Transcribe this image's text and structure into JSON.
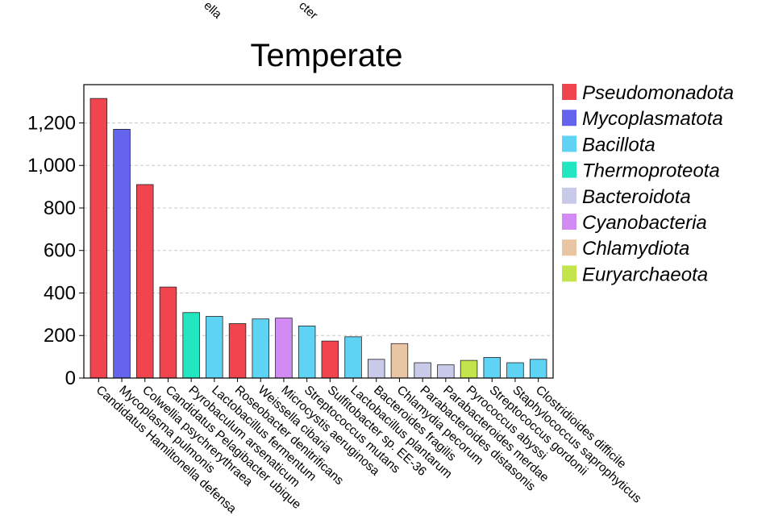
{
  "top_fragments": [
    "ella",
    "cter"
  ],
  "chart_data": {
    "type": "bar",
    "title": "Temperate",
    "xlabel": "",
    "ylabel": "",
    "ylim": [
      0,
      1380
    ],
    "yticks": [
      0,
      200,
      400,
      600,
      800,
      1000,
      1200
    ],
    "ytick_labels": [
      "0",
      "200",
      "400",
      "600",
      "800",
      "1,000",
      "1,200"
    ],
    "grid": true,
    "legend_position": "right",
    "legend": [
      {
        "name": "Pseudomonadota",
        "color": "#f0444f"
      },
      {
        "name": "Mycoplasmatota",
        "color": "#6464ee"
      },
      {
        "name": "Bacillota",
        "color": "#5fd3f4"
      },
      {
        "name": "Thermoproteota",
        "color": "#22e6c0"
      },
      {
        "name": "Bacteroidota",
        "color": "#c9c9ea"
      },
      {
        "name": "Cyanobacteria",
        "color": "#d28bf4"
      },
      {
        "name": "Chlamydiota",
        "color": "#e8c6a4"
      },
      {
        "name": "Euryarchaeota",
        "color": "#c4e44c"
      }
    ],
    "categories": [
      "Candidatus Hamiltonella defensa",
      "Mycoplasma pulmonis",
      "Colwellia psychrerythraea",
      "Candidatus Pelagibacter ubique",
      "Pyrobaculum arsenaticum",
      "Lactobacillus fermentum",
      "Roseobacter denitrificans",
      "Weissella cibaria",
      "Microcystis aeruginosa",
      "Streptococcus mutans",
      "Sulfitobacter sp. EE-36",
      "Lactobacillus plantarum",
      "Bacteroides fragilis",
      "Chlamydia pecorum",
      "Parabacteroides distasonis",
      "Parabacteroides merdae",
      "Pyrococcus abyssi",
      "Streptococcus gordonii",
      "Staphylococcus saprophyticus",
      "Clostridioides difficile"
    ],
    "values": [
      1315,
      1170,
      910,
      428,
      308,
      290,
      256,
      278,
      282,
      245,
      174,
      194,
      88,
      162,
      72,
      62,
      83,
      97,
      72,
      88
    ],
    "phylum": [
      "Pseudomonadota",
      "Mycoplasmatota",
      "Pseudomonadota",
      "Pseudomonadota",
      "Thermoproteota",
      "Bacillota",
      "Pseudomonadota",
      "Bacillota",
      "Cyanobacteria",
      "Bacillota",
      "Pseudomonadota",
      "Bacillota",
      "Bacteroidota",
      "Chlamydiota",
      "Bacteroidota",
      "Bacteroidota",
      "Euryarchaeota",
      "Bacillota",
      "Bacillota",
      "Bacillota"
    ]
  }
}
